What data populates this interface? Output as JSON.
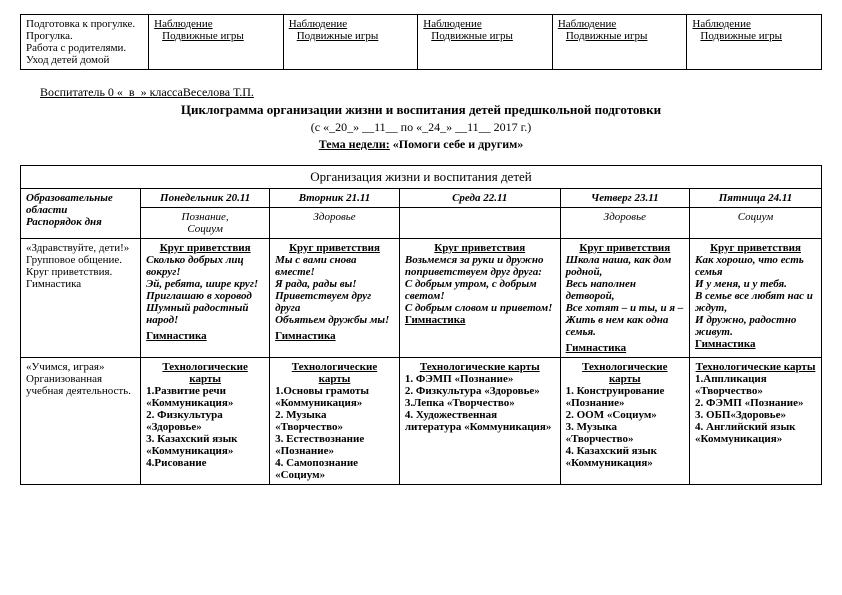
{
  "top_table": {
    "left_col": "Подготовка к прогулке.\nПрогулка.\nРабота с родителями.\nУход детей домой",
    "obs_label": "Наблюдение",
    "games_label": "Подвижные игры"
  },
  "header": {
    "teacher_line": "Воспитатель 0 «_в_» классаВеселова Т.П.",
    "title": "Циклограмма организации жизни и воспитания детей предшкольной подготовки",
    "dates": "(с «_20_» __11__ по «_24_» __11__ 2017 г.)",
    "week_label": "Тема недели:",
    "week_theme": "«Помоги себе и другим»"
  },
  "main_table": {
    "org_title": "Организация жизни и воспитания детей",
    "col0_header": "Образовательные области\nРаспорядок дня",
    "days": {
      "mon": "Понедельник 20.11",
      "tue": "Вторник 21.11",
      "wed": "Среда 22.11",
      "thu": "Четверг 23.11",
      "fri": "Пятница 24.11"
    },
    "domains": {
      "mon": "Познание,\nСоциум",
      "tue": "Здоровье",
      "wed": "",
      "thu": "Здоровье",
      "fri": "Социум"
    },
    "row1_left": "«Здравствуйте, дети!»\n Групповое общение.\nКруг приветствия.\nГимнастика",
    "greet_label": "Круг приветствия",
    "greet": {
      "mon": "Сколько добрых лиц вокруг!\nЭй, ребята, шире круг!\nПриглашаю в хоровод\nШумный радостный народ!",
      "tue": "Мы с вами снова вместе!\nЯ рада, рады вы!\nПриветствуем друг друга\nОбъятьем дружбы мы!",
      "wed": "Возьмемся за руки и дружно поприветствуем друг друга:\nС добрым утром, с добрым светом!\nС добрым словом и приветом!",
      "thu": "Школа наша, как дом родной,\nВесь наполнен детворой,\nВсе хотят – и ты, и я –\nЖить в нем как одна семья.",
      "fri": "Как хорошо, что есть семья\nИ у меня, и у тебя.\nВ семье все любят нас и ждут,\nИ дружно, радостно живут."
    },
    "gym_label": "Гимнастика",
    "row2_left": "«Учимся, играя»\nОрганизованная учебная деятельность.",
    "tech_label": "Технологические карты",
    "tech": {
      "mon": "1.Развитие речи «Коммуникация»\n2. Физкультура «Здоровье»\n3. Казахский язык «Коммуникация»\n4.Рисование",
      "tue": "1.Основы грамоты «Коммуникация»\n2. Музыка «Творчество»\n3. Естествознание «Познание»\n4. Самопознание «Социум»",
      "wed": "1. ФЭМП «Познание»\n2. Физкультура «Здоровье»\n3.Лепка «Творчество»\n4. Художественная литература «Коммуникация»",
      "thu": "1. Конструирование «Познание»\n2. ООМ «Социум»\n3. Музыка «Творчество»\n4. Казахский язык «Коммуникация»",
      "fri": "1.Аппликация «Творчество»\n2. ФЭМП «Познание»\n3. ОБП«Здоровье»\n4. Английский язык «Коммуникация»"
    }
  }
}
